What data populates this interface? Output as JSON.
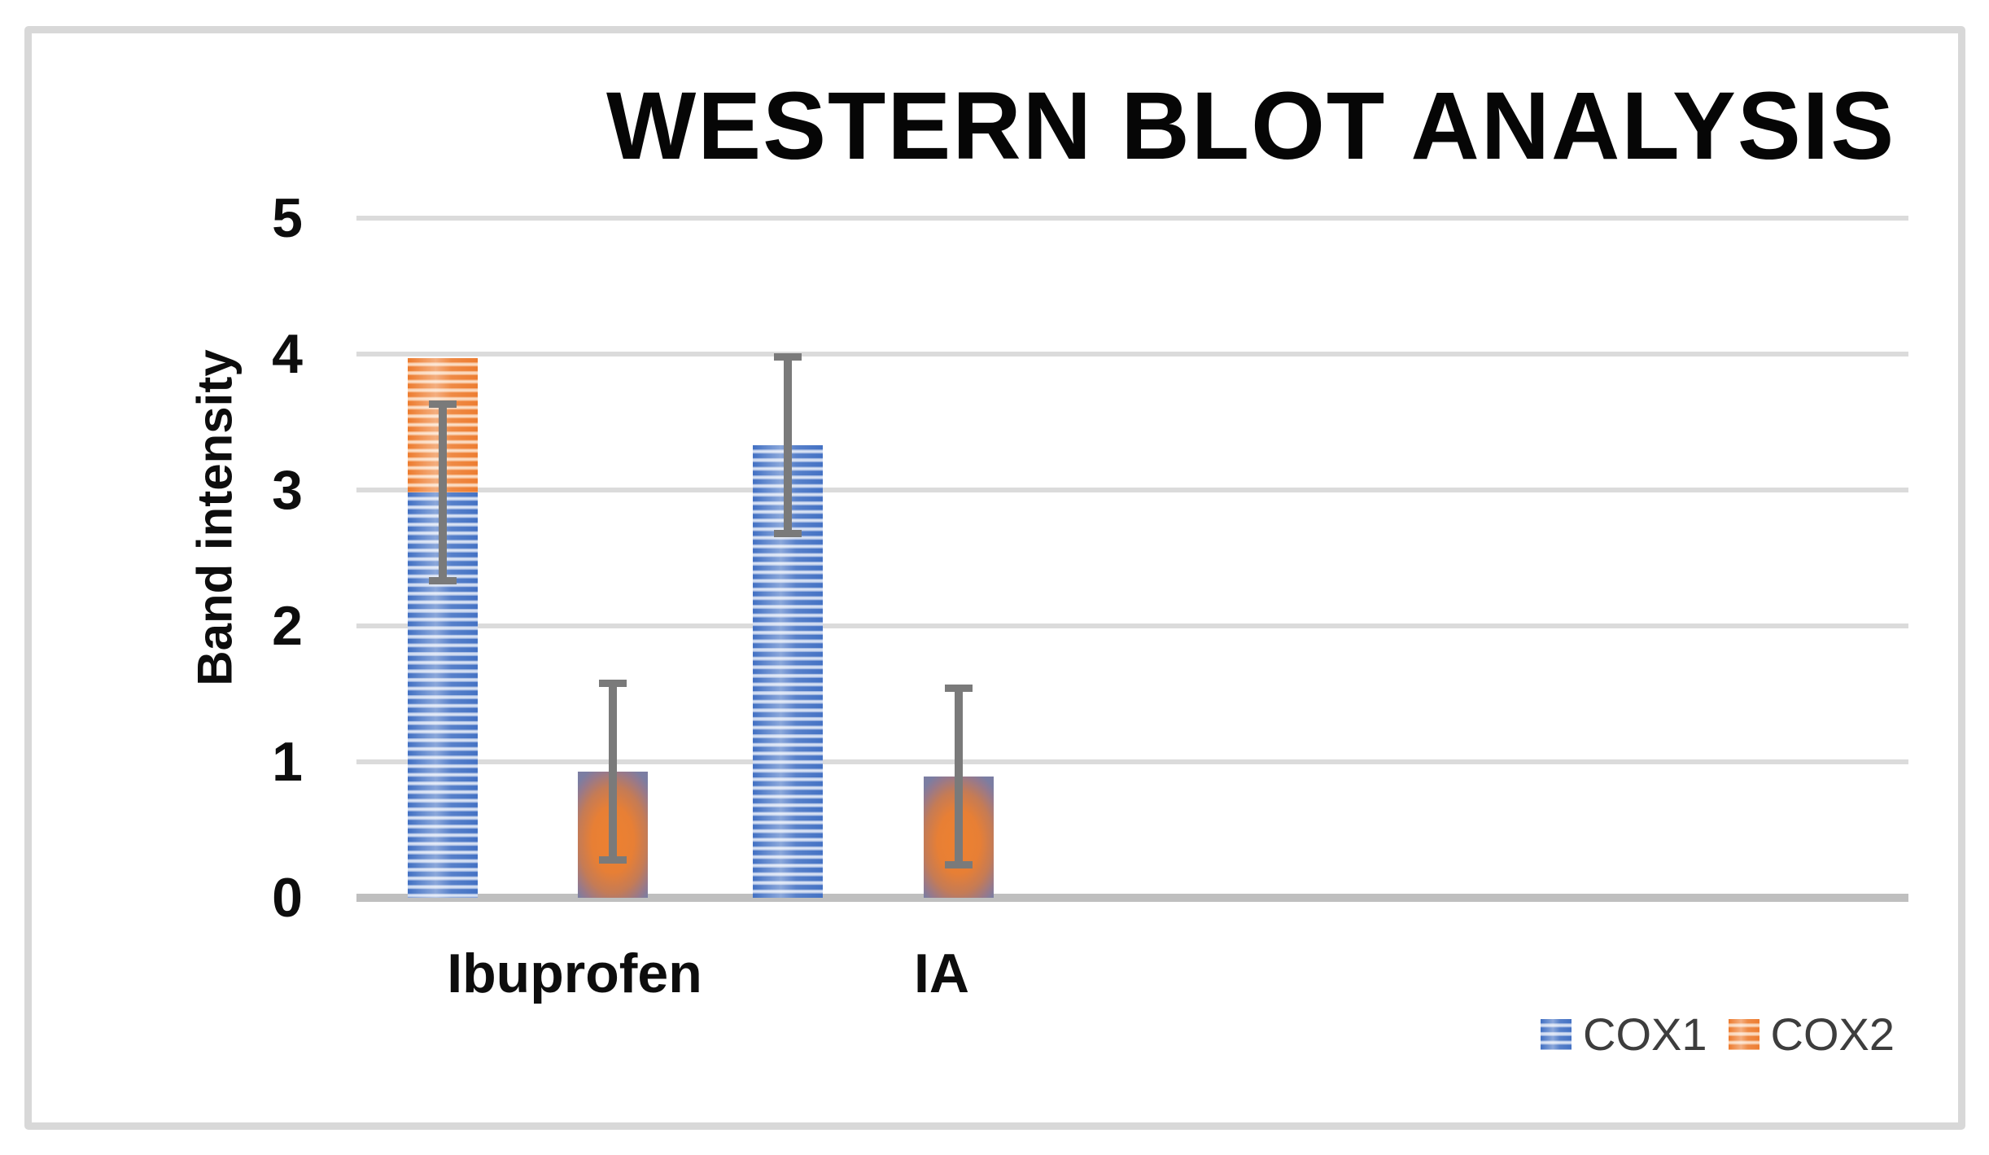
{
  "chart_data": {
    "type": "bar",
    "title": "WESTERN BLOT ANALYSIS",
    "ylabel": "Band intensity",
    "xlabel": "",
    "ylim": [
      0,
      5
    ],
    "yticks": [
      0,
      1,
      2,
      3,
      4,
      5
    ],
    "grid": true,
    "categories": [
      "Ibuprofen",
      "IA"
    ],
    "series": [
      {
        "name": "COX1",
        "color": "#4472C4",
        "pattern": "horizontal-stripes",
        "values": [
          2.98,
          3.33
        ],
        "error": [
          0.65,
          0.65
        ]
      },
      {
        "name": "COX2",
        "color": "#ED7D31",
        "pattern": "soft-radial-gradient",
        "values": [
          0.93,
          0.89
        ],
        "error": [
          0.65,
          0.65
        ]
      }
    ],
    "stacked_extra_segment": {
      "category": "Ibuprofen",
      "series": "COX2",
      "pattern": "horizontal-stripes",
      "value_from": 2.98,
      "value_to": 3.97,
      "note": "orange striped segment drawn stacked on top of the Ibuprofen COX1 bar"
    },
    "legend": {
      "position": "bottom-right",
      "entries": [
        "COX1",
        "COX2"
      ]
    }
  },
  "colors": {
    "cox1_blue": "#4472C4",
    "cox2_orange": "#ED7D31",
    "gridline": "#DBDBDB",
    "axis_line": "#BFBFBF",
    "error_bar": "#7A7A7A",
    "frame_border": "#D8D8D8",
    "title_text": "#060606",
    "legend_text": "#3D3D3D"
  }
}
